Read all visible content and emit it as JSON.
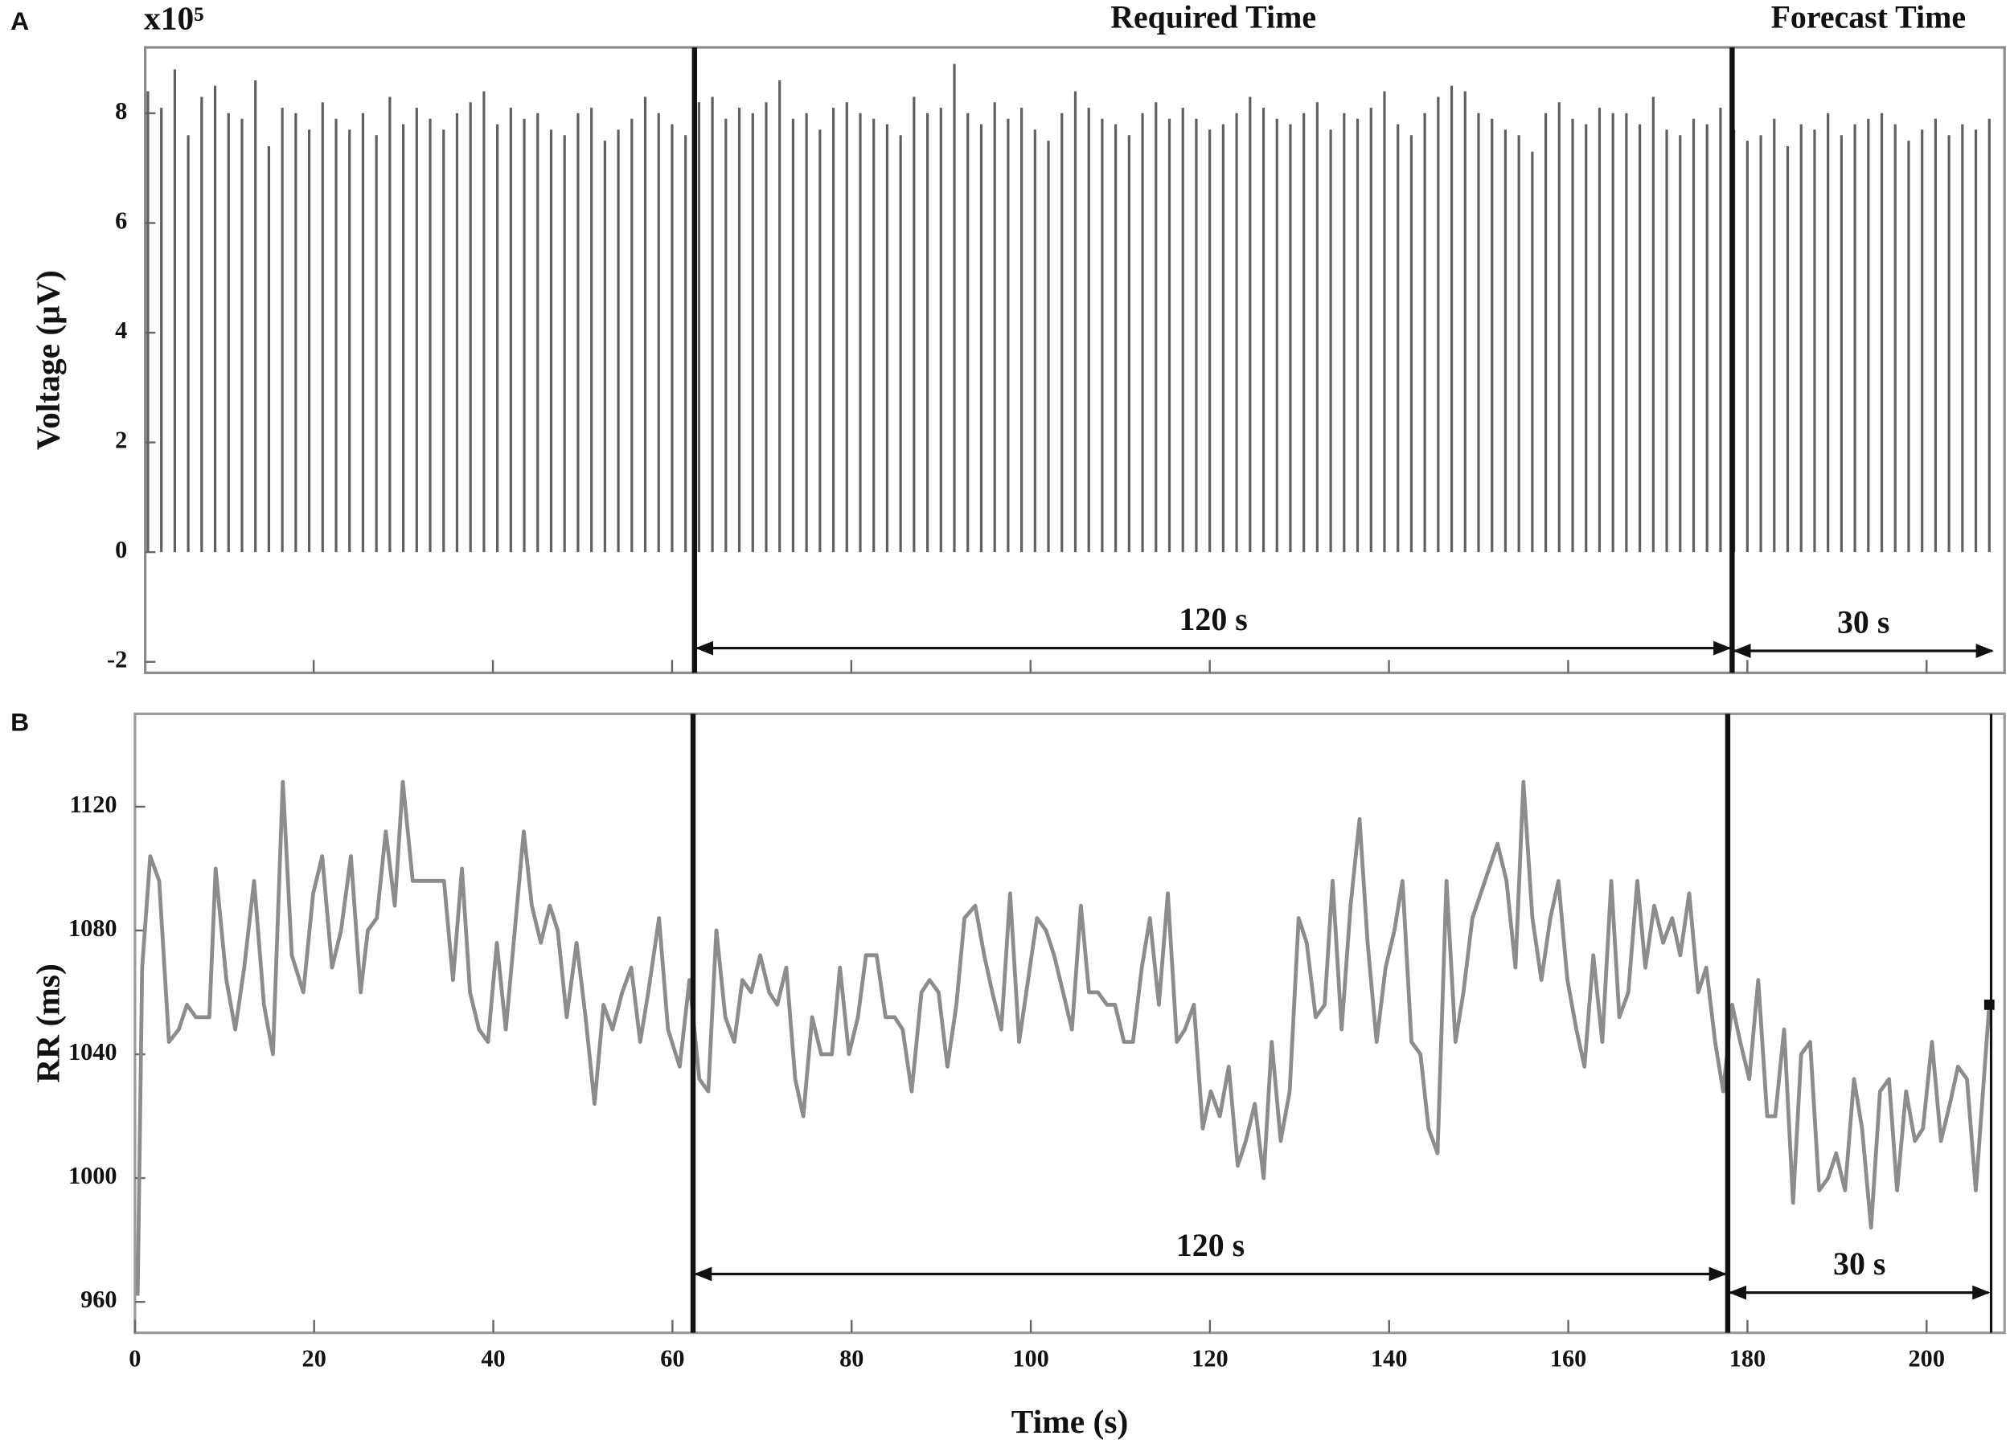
{
  "chart_data": [
    {
      "type": "stem",
      "panel": "A",
      "y_multiplier": "x10⁵",
      "ylabel": "Voltage (µV)",
      "color": "#5f5f5f",
      "xlim": [
        1.2,
        208.7
      ],
      "ylim": [
        -2.2,
        9.2
      ],
      "yticks": [
        -2,
        0,
        2,
        4,
        6,
        8
      ],
      "xticks": [
        20,
        40,
        60,
        80,
        100,
        120,
        140,
        160,
        180,
        200
      ],
      "xtick_labels": false,
      "x": [
        1.5,
        3,
        4.5,
        6,
        7.5,
        9,
        10.5,
        12,
        13.5,
        15,
        16.5,
        18,
        19.5,
        21,
        22.5,
        24,
        25.5,
        27,
        28.5,
        30,
        31.5,
        33,
        34.5,
        36,
        37.5,
        39,
        40.5,
        42,
        43.5,
        45,
        46.5,
        48,
        49.5,
        51,
        52.5,
        54,
        55.5,
        57,
        58.5,
        60,
        61.5,
        63,
        64.5,
        66,
        67.5,
        69,
        70.5,
        72,
        73.5,
        75,
        76.5,
        78,
        79.5,
        81,
        82.5,
        84,
        85.5,
        87,
        88.5,
        90,
        91.5,
        93,
        94.5,
        96,
        97.5,
        99,
        100.5,
        102,
        103.5,
        105,
        106.5,
        108,
        109.5,
        111,
        112.5,
        114,
        115.5,
        117,
        118.5,
        120,
        121.5,
        123,
        124.5,
        126,
        127.5,
        129,
        130.5,
        132,
        133.5,
        135,
        136.5,
        138,
        139.5,
        141,
        142.5,
        144,
        145.5,
        147,
        148.5,
        150,
        151.5,
        153,
        154.5,
        156,
        157.5,
        159,
        160.5,
        162,
        163.5,
        165,
        166.5,
        168,
        169.5,
        171,
        172.5,
        174,
        175.5,
        177,
        178.5,
        180,
        181.5,
        183,
        184.5,
        186,
        187.5,
        189,
        190.5,
        192,
        193.5,
        195,
        196.5,
        198,
        199.5,
        201,
        202.5,
        204,
        205.5,
        207
      ],
      "values": [
        8.4,
        8.1,
        8.8,
        7.6,
        8.3,
        8.5,
        8.0,
        7.9,
        8.6,
        7.4,
        8.1,
        8.0,
        7.7,
        8.2,
        7.9,
        7.7,
        8.0,
        7.6,
        8.3,
        7.8,
        8.1,
        7.9,
        7.7,
        8.0,
        8.2,
        8.4,
        7.8,
        8.1,
        7.9,
        8.0,
        7.7,
        7.6,
        8.0,
        8.1,
        7.5,
        7.7,
        7.9,
        8.3,
        8.0,
        7.8,
        7.6,
        8.2,
        8.3,
        7.9,
        8.1,
        8.0,
        8.2,
        8.6,
        7.9,
        8.0,
        7.7,
        8.1,
        8.2,
        8.0,
        7.9,
        7.8,
        7.6,
        8.3,
        8.0,
        8.1,
        8.9,
        8.0,
        7.8,
        8.2,
        7.9,
        8.1,
        7.7,
        7.5,
        8.0,
        8.4,
        8.1,
        7.9,
        7.8,
        7.6,
        8.0,
        8.2,
        7.9,
        8.1,
        7.9,
        7.7,
        7.8,
        8.0,
        8.3,
        8.1,
        7.9,
        7.8,
        8.0,
        8.2,
        7.7,
        8.0,
        7.9,
        8.1,
        8.4,
        7.8,
        7.6,
        8.0,
        8.3,
        8.5,
        8.4,
        8.0,
        7.9,
        7.7,
        7.6,
        7.3,
        8.0,
        8.2,
        7.9,
        7.8,
        8.1,
        8.0,
        8.0,
        7.8,
        8.3,
        7.7,
        7.6,
        7.9,
        7.8,
        8.1,
        7.7,
        7.5,
        7.6,
        7.9,
        7.4,
        7.8,
        7.7,
        8.0,
        7.6,
        7.8,
        7.9,
        8.0,
        7.8,
        7.5,
        7.7,
        7.9,
        7.6,
        7.8,
        7.7,
        7.9
      ],
      "vlines": [
        62.5,
        178.3
      ],
      "regions": [
        {
          "label": "Required Time",
          "x": [
            62.5,
            178.3
          ]
        },
        {
          "label": "Forecast Time",
          "x": [
            178.3,
            208.7
          ]
        }
      ],
      "spans": [
        {
          "label": "120 s",
          "x": [
            62.5,
            178.3
          ],
          "y": -1.75
        },
        {
          "label": "30 s",
          "x": [
            178.3,
            207.6
          ],
          "y": -1.8
        }
      ]
    },
    {
      "type": "line",
      "panel": "B",
      "ylabel": "RR (ms)",
      "xlabel": "Time (s)",
      "color": "#8c8c8c",
      "xlim": [
        0,
        208.7
      ],
      "ylim": [
        950,
        1150
      ],
      "yticks": [
        960,
        1000,
        1040,
        1080,
        1120
      ],
      "xticks": [
        0,
        20,
        40,
        60,
        80,
        100,
        120,
        140,
        160,
        180,
        200
      ],
      "xtick_labels": true,
      "x": [
        0.3,
        0.8,
        1.7,
        2.7,
        3.8,
        4.9,
        5.8,
        6.8,
        8.3,
        9.0,
        10.2,
        11.2,
        12.2,
        13.3,
        14.4,
        15.4,
        16.5,
        17.5,
        18.8,
        19.9,
        20.9,
        22.0,
        23.0,
        24.1,
        25.2,
        26.0,
        27.0,
        28.0,
        29.0,
        29.9,
        31.0,
        34.5,
        35.5,
        36.5,
        37.4,
        38.4,
        39.4,
        40.4,
        41.4,
        43.4,
        44.3,
        45.3,
        46.3,
        47.2,
        48.2,
        49.3,
        50.3,
        51.3,
        52.3,
        53.3,
        54.4,
        55.4,
        56.4,
        57.3,
        58.5,
        59.5,
        60.8,
        61.9,
        63.0,
        64.0,
        64.9,
        65.9,
        66.9,
        67.8,
        68.8,
        69.8,
        70.8,
        71.7,
        72.7,
        73.7,
        74.6,
        75.6,
        76.6,
        77.8,
        78.7,
        79.7,
        80.7,
        81.6,
        82.8,
        83.8,
        84.8,
        85.7,
        86.7,
        87.8,
        88.7,
        89.7,
        90.7,
        91.7,
        92.6,
        93.8,
        94.8,
        95.7,
        96.7,
        97.7,
        98.7,
        99.7,
        100.7,
        101.7,
        102.6,
        103.6,
        104.6,
        105.6,
        106.5,
        107.5,
        108.5,
        109.4,
        110.4,
        111.4,
        112.4,
        113.3,
        114.3,
        115.3,
        116.3,
        117.2,
        118.2,
        119.2,
        120.1,
        121.1,
        122.1,
        123.1,
        124.0,
        125.0,
        126.0,
        126.9,
        127.9,
        128.9,
        129.9,
        130.8,
        131.8,
        132.8,
        133.7,
        134.7,
        135.7,
        136.7,
        137.6,
        138.6,
        139.6,
        140.6,
        141.5,
        142.5,
        143.5,
        144.4,
        145.4,
        146.4,
        147.4,
        148.3,
        149.3,
        152.1,
        153.1,
        154.1,
        155.0,
        156.0,
        157.0,
        158.0,
        158.9,
        159.9,
        160.9,
        161.8,
        162.8,
        163.8,
        164.8,
        165.7,
        166.7,
        167.7,
        168.6,
        169.6,
        170.6,
        171.6,
        172.5,
        173.5,
        174.5,
        175.4,
        176.4,
        177.3,
        178.3,
        179.2,
        180.2,
        181.2,
        182.2,
        183.1,
        184.1,
        185.1,
        186.0,
        187.0,
        188.0,
        189.0,
        189.9,
        190.9,
        191.9,
        192.8,
        193.8,
        194.8,
        195.8,
        196.7,
        197.7,
        198.7,
        199.6,
        200.6,
        201.6,
        202.6,
        203.5,
        204.5,
        205.5,
        206.6,
        207.0
      ],
      "values": [
        962,
        1068,
        1104,
        1096,
        1044,
        1048,
        1056,
        1052,
        1052,
        1100,
        1064,
        1048,
        1068,
        1096,
        1056,
        1040,
        1128,
        1072,
        1060,
        1092,
        1104,
        1068,
        1080,
        1104,
        1060,
        1080,
        1084,
        1112,
        1088,
        1128,
        1096,
        1096,
        1064,
        1100,
        1060,
        1048,
        1044,
        1076,
        1048,
        1112,
        1088,
        1076,
        1088,
        1080,
        1052,
        1076,
        1052,
        1024,
        1056,
        1048,
        1060,
        1068,
        1044,
        1060,
        1084,
        1048,
        1036,
        1064,
        1032,
        1028,
        1080,
        1052,
        1044,
        1064,
        1060,
        1072,
        1060,
        1056,
        1068,
        1032,
        1020,
        1052,
        1040,
        1040,
        1068,
        1040,
        1052,
        1072,
        1072,
        1052,
        1052,
        1048,
        1028,
        1060,
        1064,
        1060,
        1036,
        1056,
        1084,
        1088,
        1072,
        1060,
        1048,
        1092,
        1044,
        1064,
        1084,
        1080,
        1072,
        1060,
        1048,
        1088,
        1060,
        1060,
        1056,
        1056,
        1044,
        1044,
        1068,
        1084,
        1056,
        1092,
        1044,
        1048,
        1056,
        1016,
        1028,
        1020,
        1036,
        1004,
        1012,
        1024,
        1000,
        1044,
        1012,
        1028,
        1084,
        1076,
        1052,
        1056,
        1096,
        1048,
        1088,
        1116,
        1076,
        1044,
        1068,
        1080,
        1096,
        1044,
        1040,
        1016,
        1008,
        1096,
        1044,
        1060,
        1084,
        1108,
        1096,
        1068,
        1128,
        1084,
        1064,
        1084,
        1096,
        1064,
        1048,
        1036,
        1072,
        1044,
        1096,
        1052,
        1060,
        1096,
        1068,
        1088,
        1076,
        1084,
        1072,
        1092,
        1060,
        1068,
        1044,
        1028,
        1056,
        1044,
        1032,
        1064,
        1020,
        1020,
        1048,
        992,
        1040,
        1044,
        996,
        1000,
        1008,
        996,
        1032,
        1016,
        984,
        1028,
        1032,
        996,
        1028,
        1012,
        1016,
        1044,
        1012,
        1024,
        1036,
        1032,
        996,
        1040,
        1056
      ],
      "vlines": [
        62.3,
        177.8,
        207.2
      ],
      "spans": [
        {
          "label": "120 s",
          "x": [
            62.3,
            177.8
          ],
          "y": 969
        },
        {
          "label": "30 s",
          "x": [
            177.8,
            207.2
          ],
          "y": 963
        }
      ]
    }
  ]
}
